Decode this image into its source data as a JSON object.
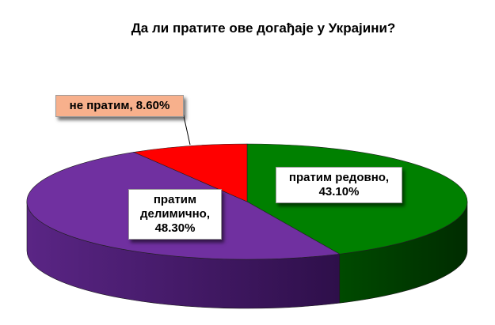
{
  "chart_data": {
    "type": "pie",
    "title": "Да ли пратите ове догађаје у Украјини?",
    "slices": [
      {
        "label": "пратим редовно",
        "value": 43.1,
        "value_text": "43.10%",
        "color": "#008000"
      },
      {
        "label": "пратим делимично",
        "value": 48.3,
        "value_text": "48.30%",
        "color": "#7030a0"
      },
      {
        "label": "не пратим",
        "value": 8.6,
        "value_text": "8.60%",
        "color": "#ff0000"
      }
    ],
    "style": "3d-pie"
  },
  "labels": {
    "green_line1": "пратим редовно,",
    "green_line2": "43.10%",
    "purple_line1": "пратим",
    "purple_line2": "делимично,",
    "purple_line3": "48.30%",
    "red_line1": "не пратим, 8.60%"
  }
}
